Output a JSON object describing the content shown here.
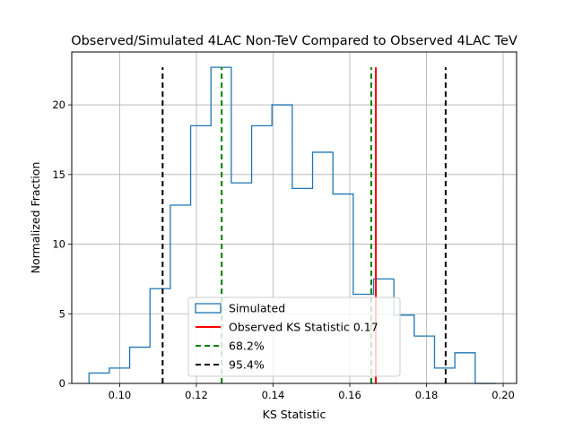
{
  "chart_data": {
    "type": "histogram",
    "title": "Observed/Simulated 4LAC Non-TeV Compared to Observed 4LAC TeV",
    "xlabel": "KS Statistic",
    "ylabel": "Normalized Fraction",
    "xlim": [
      0.0875,
      0.2035
    ],
    "ylim": [
      0,
      23.8
    ],
    "xticks": [
      0.1,
      0.12,
      0.14,
      0.16,
      0.18,
      0.2
    ],
    "xtick_labels": [
      "0.10",
      "0.12",
      "0.14",
      "0.16",
      "0.18",
      "0.20"
    ],
    "yticks": [
      0,
      5,
      10,
      15,
      20
    ],
    "ytick_labels": [
      "0",
      "5",
      "10",
      "15",
      "20"
    ],
    "grid": true,
    "legend_location": "lower center",
    "histogram": {
      "name": "Simulated",
      "color": "#1f77b4",
      "bin_edges": [
        0.092,
        0.0973,
        0.1026,
        0.1079,
        0.1132,
        0.1185,
        0.1238,
        0.1291,
        0.1344,
        0.1397,
        0.145,
        0.1503,
        0.1556,
        0.1609,
        0.1662,
        0.1715,
        0.1768,
        0.1821,
        0.1874,
        0.1927,
        0.198
      ],
      "values": [
        0.75,
        1.1,
        2.6,
        6.8,
        12.8,
        18.5,
        22.7,
        14.4,
        18.5,
        20.0,
        14.0,
        16.6,
        13.6,
        6.4,
        7.5,
        4.9,
        3.4,
        1.1,
        2.2,
        0
      ]
    },
    "vlines": [
      {
        "name": "Observed KS Statistic 0.17",
        "x": 0.1668,
        "color": "#ff0000",
        "style": "solid",
        "ymax": 22.7
      },
      {
        "name": "68.2%",
        "x": 0.1266,
        "color": "#008000",
        "style": "dashed",
        "ymax": 22.7
      },
      {
        "name": "68.2%",
        "x": 0.1656,
        "color": "#008000",
        "style": "dashed",
        "ymax": 22.7
      },
      {
        "name": "95.4%",
        "x": 0.1112,
        "color": "#000000",
        "style": "dashed",
        "ymax": 22.7
      },
      {
        "name": "95.4%",
        "x": 0.185,
        "color": "#000000",
        "style": "dashed",
        "ymax": 22.7
      }
    ],
    "legend": [
      {
        "label": "Simulated",
        "color": "#1f77b4",
        "kind": "patch"
      },
      {
        "label": "Observed KS Statistic 0.17",
        "color": "#ff0000",
        "kind": "solid"
      },
      {
        "label": "68.2%",
        "color": "#008000",
        "kind": "dashed"
      },
      {
        "label": "95.4%",
        "color": "#000000",
        "kind": "dashed"
      }
    ]
  }
}
